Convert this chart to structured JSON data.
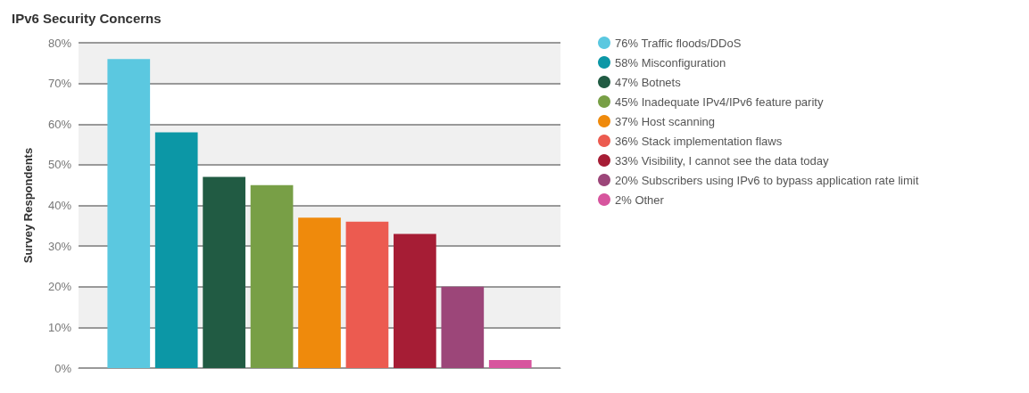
{
  "chart_data": {
    "type": "bar",
    "title": "IPv6 Security Concerns",
    "ylabel": "Survey Respondents",
    "categories": [
      null
    ],
    "series": [
      {
        "name": "76% Traffic floods/DDoS",
        "color": "#5bc8e0",
        "values": [
          76
        ]
      },
      {
        "name": "58% Misconfiguration",
        "color": "#0c97a6",
        "values": [
          58
        ]
      },
      {
        "name": "47% Botnets",
        "color": "#215b43",
        "values": [
          47
        ]
      },
      {
        "name": "45% Inadequate IPv4/IPv6 feature parity",
        "color": "#789f46",
        "values": [
          45
        ]
      },
      {
        "name": "37% Host scanning",
        "color": "#ef8a0c",
        "values": [
          37
        ]
      },
      {
        "name": "36% Stack implementation flaws",
        "color": "#ec5b50",
        "values": [
          36
        ]
      },
      {
        "name": "33% Visibility, I cannot see the data today",
        "color": "#a61d35",
        "values": [
          33
        ]
      },
      {
        "name": "20% Subscribers using IPv6 to bypass application rate limit",
        "color": "#9c4679",
        "values": [
          20
        ]
      },
      {
        "name": "2% Other",
        "color": "#d7559e",
        "values": [
          2
        ]
      }
    ],
    "ylim": [
      0,
      80
    ],
    "yticks": [
      {
        "value": 0,
        "label": "0%"
      },
      {
        "value": 10,
        "label": "10%"
      },
      {
        "value": 20,
        "label": "20%"
      },
      {
        "value": 30,
        "label": "30%"
      },
      {
        "value": 40,
        "label": "40%"
      },
      {
        "value": 50,
        "label": "50%"
      },
      {
        "value": 60,
        "label": "60%"
      },
      {
        "value": 70,
        "label": "70%"
      },
      {
        "value": 80,
        "label": "80%"
      }
    ],
    "grid": "y",
    "legend": "right"
  }
}
